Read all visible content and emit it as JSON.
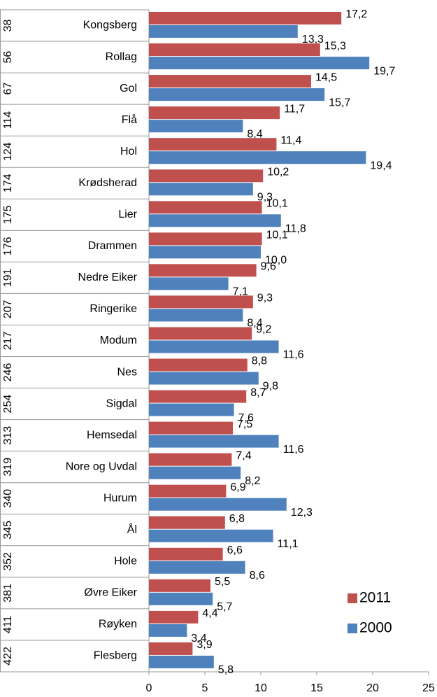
{
  "chart_data": {
    "type": "bar",
    "orientation": "horizontal",
    "ranks": [
      "38",
      "56",
      "67",
      "114",
      "124",
      "174",
      "175",
      "176",
      "191",
      "207",
      "217",
      "246",
      "254",
      "313",
      "319",
      "340",
      "345",
      "352",
      "381",
      "411",
      "422"
    ],
    "categories": [
      "Kongsberg",
      "Rollag",
      "Gol",
      "Flå",
      "Hol",
      "Krødsherad",
      "Lier",
      "Drammen",
      "Nedre Eiker",
      "Ringerike",
      "Modum",
      "Nes",
      "Sigdal",
      "Hemsedal",
      "Nore og Uvdal",
      "Hurum",
      "Ål",
      "Hole",
      "Øvre Eiker",
      "Røyken",
      "Flesberg"
    ],
    "series": [
      {
        "name": "2011",
        "color": "#c0504d",
        "values": [
          17.2,
          15.3,
          14.5,
          11.7,
          11.4,
          10.2,
          10.1,
          10.1,
          9.6,
          9.3,
          9.2,
          8.8,
          8.7,
          7.5,
          7.4,
          6.9,
          6.8,
          6.6,
          5.5,
          4.4,
          3.9
        ],
        "value_labels": [
          "17,2",
          "15,3",
          "14,5",
          "11,7",
          "11,4",
          "10,2",
          "10,1",
          "10,1",
          "9,6",
          "9,3",
          "9,2",
          "8,8",
          "8,7",
          "7,5",
          "7,4",
          "6,9",
          "6,8",
          "6,6",
          "5,5",
          "4,4",
          "3,9"
        ]
      },
      {
        "name": "2000",
        "color": "#4f81bd",
        "values": [
          13.3,
          19.7,
          15.7,
          8.4,
          19.4,
          9.3,
          11.8,
          10.0,
          7.1,
          8.4,
          11.6,
          9.8,
          7.6,
          11.6,
          8.2,
          12.3,
          11.1,
          8.6,
          5.7,
          3.4,
          5.8
        ],
        "value_labels": [
          "13,3",
          "19,7",
          "15,7",
          "8,4",
          "19,4",
          "9,3",
          "11,8",
          "10,0",
          "7,1",
          "8,4",
          "11,6",
          "9,8",
          "7,6",
          "11,6",
          "8,2",
          "12,3",
          "11,1",
          "8,6",
          "5,7",
          "3,4",
          "5,8"
        ]
      }
    ],
    "xlim": [
      0,
      25
    ],
    "xticks": [
      0,
      5,
      10,
      15,
      20,
      25
    ],
    "legend": "lower right"
  }
}
